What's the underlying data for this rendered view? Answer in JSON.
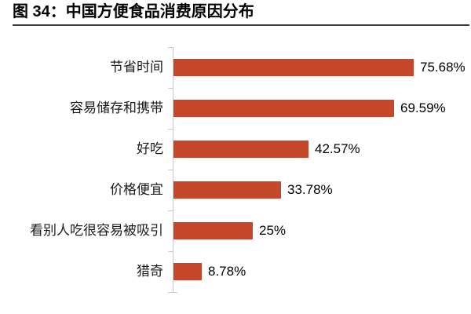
{
  "header": {
    "title": "图 34：中国方便食品消费原因分布"
  },
  "colors": {
    "bar": "#C5482B",
    "axis": "#CACACA",
    "title_rule": "#3A3A3A",
    "category_text": "#1A1A1A",
    "value_text": "#000000",
    "background": "#FFFFFF"
  },
  "chart_data": {
    "type": "bar",
    "orientation": "horizontal",
    "title": "中国方便食品消费原因分布",
    "categories": [
      "节省时间",
      "容易储存和携带",
      "好吃",
      "价格便宜",
      "看别人吃很容易被吸引",
      "猎奇"
    ],
    "values": [
      75.68,
      69.59,
      42.57,
      33.78,
      25,
      8.78
    ],
    "value_labels": [
      "75.68%",
      "69.59%",
      "42.57%",
      "33.78%",
      "25%",
      "8.78%"
    ],
    "unit": "%",
    "xlabel": "",
    "ylabel": "",
    "xlim": [
      0,
      80
    ],
    "grid": false,
    "legend": false,
    "data_labels": "outside-end"
  }
}
